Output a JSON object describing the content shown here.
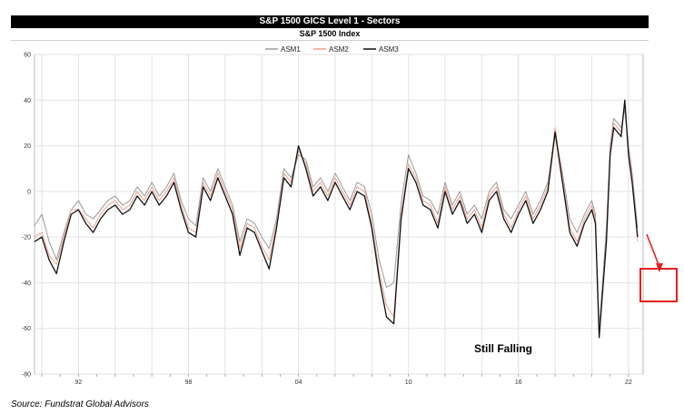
{
  "header": {
    "title": "S&P 1500 GICS Level 1 - Sectors",
    "subtitle": "S&P 1500 Index"
  },
  "footer": {
    "source": "Source:  Fundstrat Global Advisors"
  },
  "annotation": {
    "text": "Still Falling",
    "arrow_color": "#e8201e",
    "box_color": "#e8201e"
  },
  "chart_data": {
    "type": "line",
    "title": "S&P 1500 GICS Level 1 - Sectors",
    "subtitle": "S&P 1500 Index",
    "xlabel": "",
    "ylabel": "",
    "xlim": [
      1989.6,
      2022.8
    ],
    "ylim": [
      -80,
      60
    ],
    "y_ticks": [
      60,
      40,
      20,
      0,
      -20,
      -40,
      -60,
      -80
    ],
    "x_ticks": [
      {
        "value": 1992,
        "label": "92"
      },
      {
        "value": 1998,
        "label": "98"
      },
      {
        "value": 2004,
        "label": "04"
      },
      {
        "value": 2010,
        "label": "10"
      },
      {
        "value": 2016,
        "label": "16"
      },
      {
        "value": 2022,
        "label": "22"
      }
    ],
    "grid": true,
    "legend": "top-center",
    "x": [
      1989.6,
      1990.0,
      1990.4,
      1990.8,
      1991.2,
      1991.6,
      1992.0,
      1992.4,
      1992.8,
      1993.2,
      1993.6,
      1994.0,
      1994.4,
      1994.8,
      1995.2,
      1995.6,
      1996.0,
      1996.4,
      1996.8,
      1997.2,
      1997.6,
      1998.0,
      1998.4,
      1998.8,
      1999.2,
      1999.6,
      2000.0,
      2000.4,
      2000.8,
      2001.2,
      2001.6,
      2002.0,
      2002.4,
      2002.8,
      2003.2,
      2003.6,
      2004.0,
      2004.4,
      2004.8,
      2005.2,
      2005.6,
      2006.0,
      2006.4,
      2006.8,
      2007.2,
      2007.6,
      2008.0,
      2008.4,
      2008.8,
      2009.2,
      2009.6,
      2010.0,
      2010.4,
      2010.8,
      2011.2,
      2011.6,
      2012.0,
      2012.4,
      2012.8,
      2013.2,
      2013.6,
      2014.0,
      2014.4,
      2014.8,
      2015.2,
      2015.6,
      2016.0,
      2016.4,
      2016.8,
      2017.2,
      2017.6,
      2018.0,
      2018.4,
      2018.8,
      2019.2,
      2019.6,
      2020.0,
      2020.2,
      2020.4,
      2020.8,
      2021.0,
      2021.2,
      2021.6,
      2021.8,
      2022.0,
      2022.2,
      2022.5
    ],
    "series": [
      {
        "name": "ASM1",
        "color": "#9a9a9a",
        "values": [
          -15,
          -10,
          -22,
          -30,
          -18,
          -8,
          -4,
          -10,
          -12,
          -8,
          -4,
          -2,
          -6,
          -4,
          2,
          -2,
          4,
          -2,
          2,
          8,
          -4,
          -12,
          -15,
          6,
          0,
          10,
          2,
          -6,
          -22,
          -12,
          -14,
          -20,
          -25,
          -12,
          10,
          6,
          16,
          14,
          2,
          6,
          0,
          8,
          2,
          -4,
          4,
          2,
          -10,
          -30,
          -42,
          -40,
          -5,
          16,
          8,
          -2,
          -4,
          -10,
          4,
          -6,
          0,
          -10,
          -6,
          -12,
          0,
          4,
          -8,
          -12,
          -6,
          0,
          -10,
          -4,
          4,
          26,
          8,
          -12,
          -18,
          -10,
          -4,
          -10,
          -60,
          -16,
          20,
          32,
          28,
          36,
          20,
          8,
          -16
        ]
      },
      {
        "name": "ASM2",
        "color": "#f0a090",
        "values": [
          -20,
          -18,
          -28,
          -32,
          -20,
          -8,
          -8,
          -12,
          -16,
          -10,
          -6,
          -4,
          -8,
          -6,
          0,
          -4,
          2,
          -4,
          0,
          6,
          -6,
          -16,
          -18,
          4,
          -2,
          8,
          0,
          -8,
          -25,
          -14,
          -16,
          -24,
          -30,
          -14,
          8,
          4,
          18,
          12,
          0,
          4,
          -2,
          6,
          0,
          -6,
          2,
          0,
          -14,
          -35,
          -50,
          -55,
          -10,
          12,
          6,
          -4,
          -6,
          -14,
          2,
          -8,
          -2,
          -12,
          -8,
          -16,
          -2,
          2,
          -10,
          -16,
          -8,
          -2,
          -12,
          -6,
          2,
          28,
          6,
          -16,
          -22,
          -12,
          -6,
          -12,
          -62,
          -20,
          18,
          30,
          26,
          38,
          18,
          6,
          -22
        ]
      },
      {
        "name": "ASM3",
        "color": "#111111",
        "values": [
          -22,
          -20,
          -30,
          -36,
          -22,
          -10,
          -8,
          -14,
          -18,
          -12,
          -8,
          -6,
          -10,
          -8,
          -2,
          -6,
          0,
          -6,
          -2,
          4,
          -8,
          -18,
          -20,
          2,
          -4,
          6,
          -2,
          -10,
          -28,
          -16,
          -18,
          -26,
          -34,
          -16,
          6,
          2,
          20,
          10,
          -2,
          2,
          -4,
          4,
          -2,
          -8,
          0,
          -2,
          -16,
          -38,
          -55,
          -58,
          -12,
          10,
          4,
          -6,
          -8,
          -16,
          0,
          -10,
          -4,
          -14,
          -10,
          -18,
          -4,
          0,
          -12,
          -18,
          -10,
          -4,
          -14,
          -8,
          0,
          26,
          4,
          -18,
          -24,
          -14,
          -8,
          -14,
          -64,
          -22,
          16,
          28,
          24,
          40,
          16,
          4,
          -20
        ]
      }
    ]
  }
}
